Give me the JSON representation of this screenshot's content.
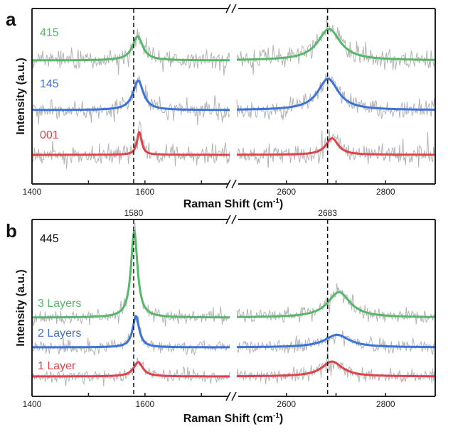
{
  "chart_data": [
    {
      "type": "line",
      "panel": "a",
      "xlabel": "Raman Shift (cm-1)",
      "xlabel_parts": {
        "main": "Raman Shift (cm",
        "sup": "-1",
        "end": ")"
      },
      "ylabel": "Intensity (a.u.)",
      "x_segments": [
        [
          1400,
          1750
        ],
        [
          2500,
          2900
        ]
      ],
      "x_ticks": [
        1400,
        1500,
        1600,
        1700,
        2600,
        2700,
        2800
      ],
      "x_tick_labels": [
        "1400",
        "1600",
        "2600",
        "2800"
      ],
      "axis_break": "between 1750 and 2500",
      "reference_lines": [
        {
          "x": 1580,
          "label": ""
        },
        {
          "x": 2683,
          "label": ""
        }
      ],
      "grid": false,
      "legend": "inline-left",
      "series": [
        {
          "name": "415",
          "color": "#55b86a",
          "offset": 2.0,
          "peaks": [
            {
              "center": 1587,
              "height": 0.65,
              "fwhm": 22
            },
            {
              "center": 2686,
              "height": 0.85,
              "fwhm": 55
            }
          ]
        },
        {
          "name": "145",
          "color": "#3b73d8",
          "offset": 1.0,
          "peaks": [
            {
              "center": 1588,
              "height": 0.8,
              "fwhm": 22
            },
            {
              "center": 2684,
              "height": 0.85,
              "fwhm": 50
            }
          ]
        },
        {
          "name": "001",
          "color": "#e0424a",
          "offset": 0.0,
          "peaks": [
            {
              "center": 1590,
              "height": 0.62,
              "fwhm": 10
            },
            {
              "center": 2692,
              "height": 0.45,
              "fwhm": 30
            }
          ]
        }
      ],
      "noise": {
        "color": "#b4b4b4",
        "description": "raw spectra (gray) behind Lorentzian fits"
      }
    },
    {
      "type": "line",
      "panel": "b",
      "xlabel": "Raman Shift (cm-1)",
      "xlabel_parts": {
        "main": "Raman Shift (cm",
        "sup": "-1",
        "end": ")"
      },
      "ylabel": "Intensity (a.u.)",
      "x_segments": [
        [
          1400,
          1750
        ],
        [
          2500,
          2900
        ]
      ],
      "x_ticks": [
        1400,
        1500,
        1600,
        1700,
        2600,
        2700,
        2800
      ],
      "x_tick_labels": [
        "1400",
        "1600",
        "2600",
        "2800"
      ],
      "axis_break": "between 1750 and 2500",
      "reference_lines": [
        {
          "x": 1580,
          "label": "1580"
        },
        {
          "x": 2683,
          "label": "2683"
        }
      ],
      "annotation": "445",
      "grid": false,
      "legend": "inline-left",
      "series": [
        {
          "name": "3 Layers",
          "color": "#55b86a",
          "offset": 2.0,
          "peaks": [
            {
              "center": 1581,
              "height": 2.9,
              "fwhm": 14
            },
            {
              "center": 2706,
              "height": 0.85,
              "fwhm": 55
            }
          ]
        },
        {
          "name": "2 Layers",
          "color": "#3b73d8",
          "offset": 1.0,
          "peaks": [
            {
              "center": 1584,
              "height": 1.05,
              "fwhm": 14
            },
            {
              "center": 2702,
              "height": 0.42,
              "fwhm": 60
            }
          ]
        },
        {
          "name": "1 Layer",
          "color": "#e0424a",
          "offset": 0.0,
          "peaks": [
            {
              "center": 1588,
              "height": 0.48,
              "fwhm": 20
            },
            {
              "center": 2692,
              "height": 0.5,
              "fwhm": 50
            }
          ]
        }
      ],
      "noise": {
        "color": "#b4b4b4",
        "description": "raw spectra (gray) behind Lorentzian fits"
      }
    }
  ],
  "labels": {
    "panel_a": "a",
    "panel_b": "b"
  }
}
